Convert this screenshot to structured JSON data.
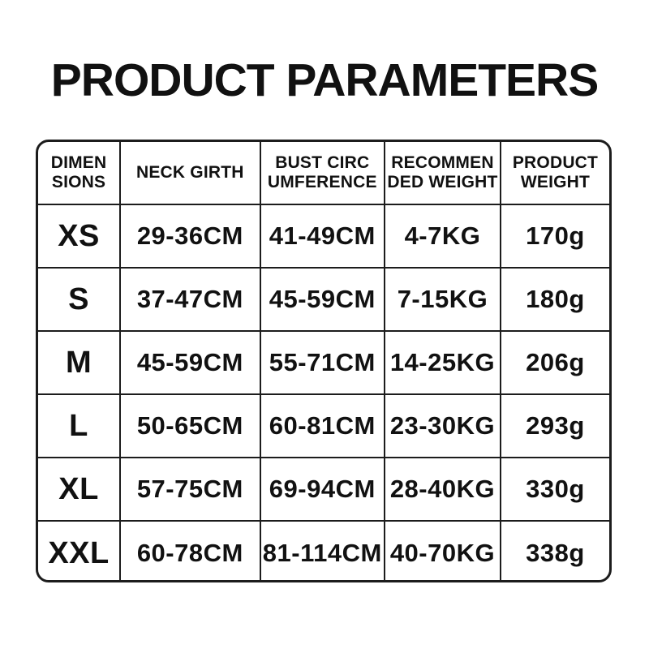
{
  "page": {
    "title": "PRODUCT PARAMETERS"
  },
  "colors": {
    "text": "#111111",
    "border": "#1c1c1c",
    "background": "#ffffff"
  },
  "table": {
    "header_display": [
      "DIMEN\nSIONS",
      "NECK GIRTH",
      "BUST CIRC\nUMFERENCE",
      "RECOMMEN\nDED WEIGHT",
      "PRODUCT\nWEIGHT"
    ]
  },
  "chart_data": {
    "type": "table",
    "title": "PRODUCT PARAMETERS",
    "columns": [
      "DIMENSIONS",
      "NECK GIRTH",
      "BUST CIRCUMFERENCE",
      "RECOMMENDED WEIGHT",
      "PRODUCT WEIGHT"
    ],
    "rows": [
      [
        "XS",
        "29-36CM",
        "41-49CM",
        "4-7KG",
        "170g"
      ],
      [
        "S",
        "37-47CM",
        "45-59CM",
        "7-15KG",
        "180g"
      ],
      [
        "M",
        "45-59CM",
        "55-71CM",
        "14-25KG",
        "206g"
      ],
      [
        "L",
        "50-65CM",
        "60-81CM",
        "23-30KG",
        "293g"
      ],
      [
        "XL",
        "57-75CM",
        "69-94CM",
        "28-40KG",
        "330g"
      ],
      [
        "XXL",
        "60-78CM",
        "81-114CM",
        "40-70KG",
        "338g"
      ]
    ]
  }
}
